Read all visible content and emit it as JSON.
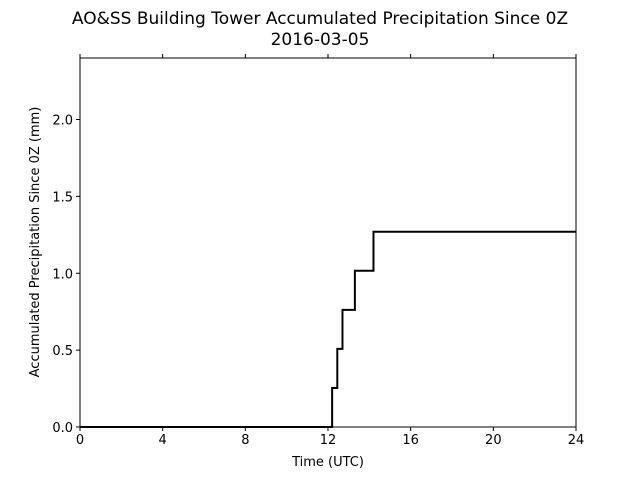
{
  "chart_data": {
    "type": "line",
    "title": "AO&SS Building Tower Accumulated Precipitation Since 0Z",
    "subtitle": "2016-03-05",
    "xlabel": "Time (UTC)",
    "ylabel": "Accumulated Precipitation Since 0Z (mm)",
    "xlim": [
      0,
      24
    ],
    "ylim": [
      0,
      2.4
    ],
    "xticks": [
      0,
      4,
      8,
      12,
      16,
      20,
      24
    ],
    "xtick_labels": [
      "0",
      "4",
      "8",
      "12",
      "16",
      "20",
      "24"
    ],
    "yticks": [
      0.0,
      0.5,
      1.0,
      1.5,
      2.0
    ],
    "ytick_labels": [
      "0.0",
      "0.5",
      "1.0",
      "1.5",
      "2.0"
    ],
    "grid": false,
    "line_style": "step",
    "series": [
      {
        "color": "#000000",
        "x": [
          0,
          12.2,
          12.2,
          12.45,
          12.45,
          12.7,
          12.7,
          13.3,
          13.3,
          14.2,
          14.2,
          24
        ],
        "y": [
          0,
          0,
          0.254,
          0.254,
          0.508,
          0.508,
          0.762,
          0.762,
          1.016,
          1.016,
          1.27,
          1.27
        ]
      }
    ]
  }
}
